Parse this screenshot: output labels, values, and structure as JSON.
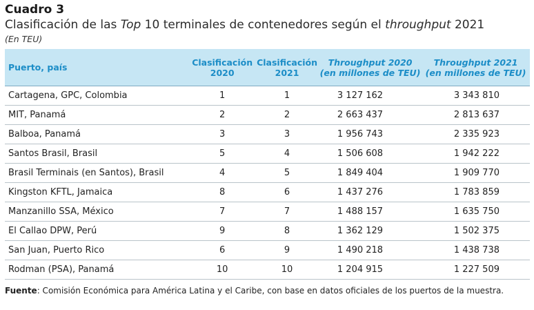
{
  "header": {
    "cuadro": "Cuadro 3",
    "title_part1": "Clasificación de las ",
    "title_italic1": "Top",
    "title_part2": " 10 terminales de contenedores según el ",
    "title_italic2": "throughput",
    "title_part3": " 2021",
    "unit": "(En TEU)"
  },
  "table": {
    "columns": [
      {
        "label": "Puerto, país"
      },
      {
        "line1": "Clasificación",
        "line2": "2020"
      },
      {
        "line1": "Clasificación",
        "line2": "2021"
      },
      {
        "line1": "Throughput 2020",
        "line2": "(en millones de TEU)"
      },
      {
        "line1": "Throughput 2021",
        "line2": "(en millones de TEU)"
      }
    ],
    "rows": [
      [
        "Cartagena, GPC, Colombia",
        "1",
        "1",
        "3 127 162",
        "3 343 810"
      ],
      [
        "MIT, Panamá",
        "2",
        "2",
        "2 663 437",
        "2 813 637"
      ],
      [
        "Balboa, Panamá",
        "3",
        "3",
        "1 956 743",
        "2 335 923"
      ],
      [
        "Santos Brasil, Brasil",
        "5",
        "4",
        "1 506 608",
        "1 942 222"
      ],
      [
        "Brasil Terminais (en Santos), Brasil",
        "4",
        "5",
        "1 849 404",
        "1 909 770"
      ],
      [
        "Kingston KFTL, Jamaica",
        "8",
        "6",
        "1 437 276",
        "1 783 859"
      ],
      [
        "Manzanillo SSA, México",
        "7",
        "7",
        "1 488 157",
        "1 635 750"
      ],
      [
        "El Callao DPW, Perú",
        "9",
        "8",
        "1 362 129",
        "1 502 375"
      ],
      [
        "San Juan, Puerto Rico",
        "6",
        "9",
        "1 490 218",
        "1 438 738"
      ],
      [
        "Rodman (PSA), Panamá",
        "10",
        "10",
        "1 204 915",
        "1 227 509"
      ]
    ]
  },
  "footer": {
    "source_label": "Fuente",
    "source_text": ": Comisión Económica para América Latina y el Caribe, con base en datos oficiales de los puertos de la muestra."
  }
}
